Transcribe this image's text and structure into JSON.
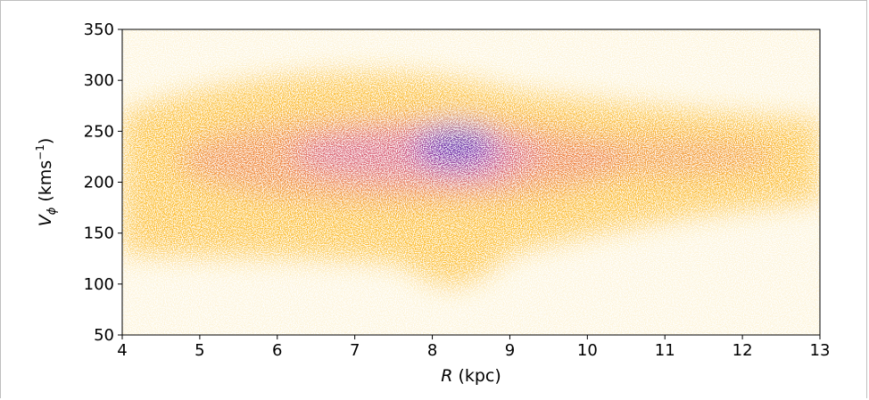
{
  "chart_data": {
    "type": "heatmap",
    "title": "",
    "xlabel": {
      "symbol": "R",
      "text": " (kpc)"
    },
    "ylabel": {
      "symbol": "V",
      "subscript": "ϕ",
      "text": " (kms",
      "superscript": "−1",
      "close": ")"
    },
    "xlim": [
      4,
      13
    ],
    "ylim": [
      50,
      350
    ],
    "x_ticks": [
      4,
      5,
      6,
      7,
      8,
      9,
      10,
      11,
      12,
      13
    ],
    "y_ticks": [
      50,
      100,
      150,
      200,
      250,
      300,
      350
    ],
    "grid": false,
    "legend": "none",
    "colormap": "plasma",
    "colors": {
      "low": "#fbb61a",
      "mid": "#e8652b",
      "high": "#cc4778",
      "peak": "#5b00a8",
      "core": "#2c0594"
    },
    "density_peak": {
      "x": 8.3,
      "y": 235
    },
    "density_features": [
      {
        "x": 6.5,
        "y": 220,
        "level": 0.35
      },
      {
        "x": 7.5,
        "y": 228,
        "level": 0.5
      },
      {
        "x": 8.3,
        "y": 235,
        "level": 1.0
      },
      {
        "x": 10.0,
        "y": 228,
        "level": 0.4
      },
      {
        "x": 11.5,
        "y": 222,
        "level": 0.2
      },
      {
        "x": 8.4,
        "y": 205,
        "level": 0.5
      }
    ]
  }
}
